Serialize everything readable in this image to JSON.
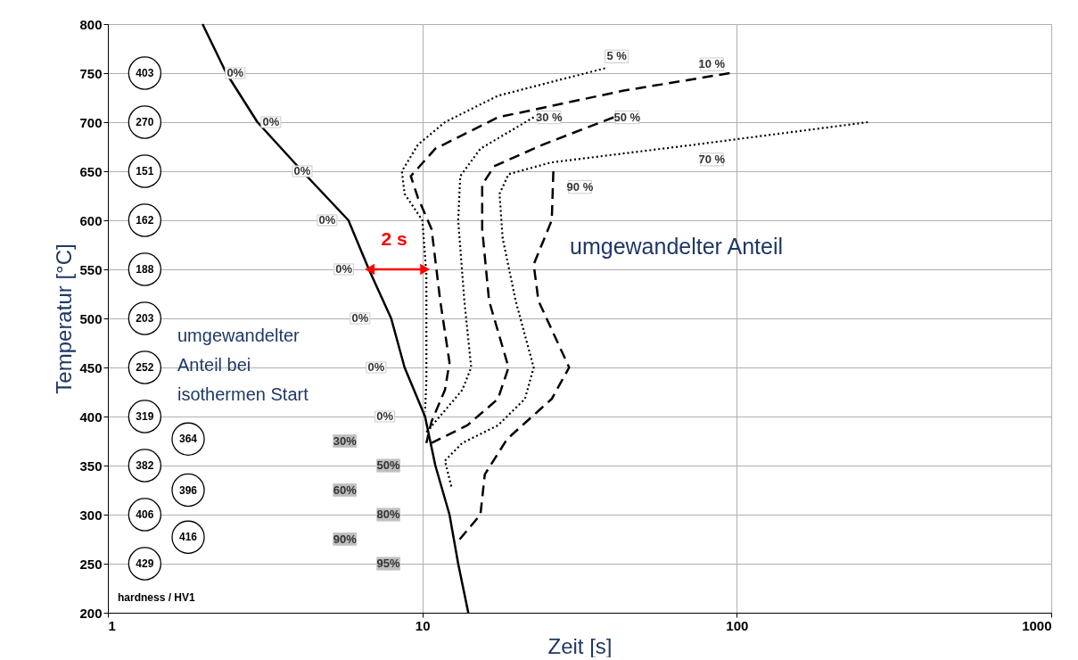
{
  "chart_data": {
    "type": "line",
    "xlabel": "Zeit [s]",
    "ylabel": "Temperatur [°C]",
    "log": "x",
    "grid": true,
    "xlim": [
      1,
      1000
    ],
    "xticks": [
      1,
      10,
      100,
      1000
    ],
    "ylim": [
      200,
      800
    ],
    "yticks": [
      200,
      250,
      300,
      350,
      400,
      450,
      500,
      550,
      600,
      650,
      700,
      750,
      800
    ],
    "series": [
      {
        "color": "#000000",
        "line_style": "solid",
        "x": [
          2.0,
          2.38,
          2.99,
          4.15,
          5.82,
          6.76,
          7.96,
          8.78,
          10.2,
          11.0,
          12.2,
          13.0,
          14.0
        ],
        "values": [
          800,
          750,
          700,
          650,
          600,
          550,
          500,
          450,
          400,
          350,
          300,
          250,
          200
        ]
      },
      {
        "color": "#000000",
        "line_style": "dotted",
        "x": [
          38.1,
          17.4,
          11.8,
          9.68,
          8.61,
          8.78,
          10.0,
          10.3,
          10.3,
          10.3,
          10.2
        ],
        "values": [
          755,
          727,
          700,
          677,
          650,
          627,
          600,
          545,
          473,
          436,
          405
        ]
      },
      {
        "color": "#000000",
        "line_style": "dashed",
        "x": [
          94.9,
          43.4,
          17.4,
          11.0,
          9.19,
          9.68,
          10.7,
          11.4,
          12.2,
          11.8,
          10.7,
          10.3
        ],
        "values": [
          750,
          732,
          705,
          673,
          645,
          623,
          591,
          518,
          455,
          427,
          395,
          373
        ]
      },
      {
        "color": "#000000",
        "line_style": "dotted",
        "x": [
          22.6,
          15.3,
          13.2,
          13.0,
          13.6,
          14.3,
          13.4,
          10.3
        ],
        "values": [
          705,
          673,
          645,
          600,
          518,
          450,
          427,
          384
        ]
      },
      {
        "color": "#000000",
        "line_style": "dashed",
        "x": [
          40.6,
          24.1,
          16.9,
          15.5,
          15.5,
          16.3,
          18.8,
          17.4,
          13.9,
          10.7
        ],
        "values": [
          705,
          677,
          655,
          636,
          591,
          518,
          450,
          418,
          391,
          373
        ]
      },
      {
        "color": "#000000",
        "line_style": "dotted",
        "x": [
          261,
          73.1,
          25.7,
          18.8,
          17.6,
          18.0,
          19.8,
          22.6,
          21.2,
          17.4,
          13.4,
          11.8,
          12.4
        ],
        "values": [
          700,
          677,
          659,
          647,
          627,
          582,
          518,
          450,
          418,
          391,
          373,
          355,
          327
        ]
      },
      {
        "color": "#000000",
        "line_style": "dashed",
        "x": [
          26.1,
          25.8,
          22.6,
          23.4,
          29.3,
          25.8,
          18.6,
          15.8,
          15.3,
          13.0
        ],
        "values": [
          650,
          600,
          555,
          518,
          450,
          418,
          377,
          341,
          300,
          273
        ]
      },
      {
        "color": "#ff0000",
        "line_style": "solid",
        "marker": "triangle",
        "x": [
          6.8,
          10.2
        ],
        "values": [
          550,
          550
        ]
      }
    ],
    "annotations": [
      {
        "text": "403",
        "x": 1.31,
        "y": 750
      },
      {
        "text": "270",
        "x": 1.31,
        "y": 700
      },
      {
        "text": "151",
        "x": 1.31,
        "y": 650
      },
      {
        "text": "162",
        "x": 1.31,
        "y": 600
      },
      {
        "text": "188",
        "x": 1.31,
        "y": 550
      },
      {
        "text": "203",
        "x": 1.31,
        "y": 500
      },
      {
        "text": "252",
        "x": 1.31,
        "y": 450
      },
      {
        "text": "319",
        "x": 1.31,
        "y": 400
      },
      {
        "text": "382",
        "x": 1.31,
        "y": 350
      },
      {
        "text": "406",
        "x": 1.31,
        "y": 300
      },
      {
        "text": "429",
        "x": 1.31,
        "y": 250
      },
      {
        "text": "364",
        "x": 1.8,
        "y": 377
      },
      {
        "text": "396",
        "x": 1.8,
        "y": 325
      },
      {
        "text": "416",
        "x": 1.8,
        "y": 277
      },
      {
        "text": "0%",
        "x": 2.54,
        "y": 750
      },
      {
        "text": "0%",
        "x": 3.3,
        "y": 700
      },
      {
        "text": "0%",
        "x": 4.15,
        "y": 650
      },
      {
        "text": "0%",
        "x": 4.98,
        "y": 600
      },
      {
        "text": "0%",
        "x": 5.63,
        "y": 550
      },
      {
        "text": "0%",
        "x": 6.34,
        "y": 500
      },
      {
        "text": "0%",
        "x": 7.13,
        "y": 450
      },
      {
        "text": "0%",
        "x": 7.6,
        "y": 400
      },
      {
        "text": "30%",
        "x": 5.67,
        "y": 375
      },
      {
        "text": "50%",
        "x": 7.8,
        "y": 350
      },
      {
        "text": "60%",
        "x": 5.67,
        "y": 325
      },
      {
        "text": "80%",
        "x": 7.8,
        "y": 300
      },
      {
        "text": "90%",
        "x": 5.67,
        "y": 275
      },
      {
        "text": "95%",
        "x": 7.8,
        "y": 250
      },
      {
        "text": "5 %",
        "x": 41.5,
        "y": 767
      },
      {
        "text": "10 %",
        "x": 83.3,
        "y": 759
      },
      {
        "text": "30 %",
        "x": 25.3,
        "y": 705
      },
      {
        "text": "50 %",
        "x": 44.8,
        "y": 705
      },
      {
        "text": "70 %",
        "x": 83.3,
        "y": 662
      },
      {
        "text": "90 %",
        "x": 31.7,
        "y": 634
      },
      "hardness / HV1",
      "umgewandelter Anteil",
      "umgewandelter\nAnteil bei\nisothermen Start",
      "2 s"
    ]
  }
}
